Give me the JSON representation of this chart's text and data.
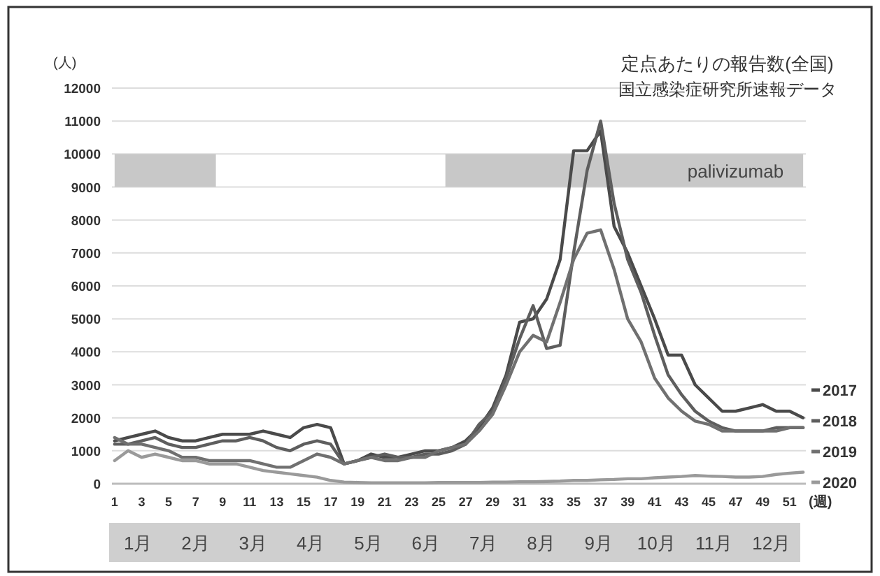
{
  "chart_data": {
    "type": "line",
    "title": "定点あたりの報告数(全国)",
    "subtitle": "国立感染症研究所速報データ",
    "ylabel": "(人)",
    "xlabel": "(週)",
    "x": [
      1,
      2,
      3,
      4,
      5,
      6,
      7,
      8,
      9,
      10,
      11,
      12,
      13,
      14,
      15,
      16,
      17,
      18,
      19,
      20,
      21,
      22,
      23,
      24,
      25,
      26,
      27,
      28,
      29,
      30,
      31,
      32,
      33,
      34,
      35,
      36,
      37,
      38,
      39,
      40,
      41,
      42,
      43,
      44,
      45,
      46,
      47,
      48,
      49,
      50,
      51,
      52
    ],
    "xlim": [
      0.8,
      52.2
    ],
    "xticks": [
      1,
      3,
      5,
      7,
      9,
      11,
      13,
      15,
      17,
      19,
      21,
      23,
      25,
      27,
      29,
      31,
      33,
      35,
      37,
      39,
      41,
      43,
      45,
      47,
      49,
      51
    ],
    "ylim": [
      0,
      12000
    ],
    "yticks": [
      0,
      1000,
      2000,
      3000,
      4000,
      5000,
      6000,
      7000,
      8000,
      9000,
      10000,
      11000,
      12000
    ],
    "grid": "y",
    "legend": "right",
    "line_style": "solid",
    "marker": "none",
    "series": [
      {
        "name": "2017",
        "color": "#4a4a4a",
        "values": [
          1300,
          1400,
          1500,
          1600,
          1400,
          1300,
          1300,
          1400,
          1500,
          1500,
          1500,
          1600,
          1500,
          1400,
          1700,
          1800,
          1700,
          600,
          700,
          900,
          800,
          800,
          900,
          1000,
          1000,
          1100,
          1300,
          1700,
          2300,
          3300,
          4900,
          5000,
          5600,
          6800,
          10100,
          10100,
          10700,
          7800,
          7000,
          6000,
          5000,
          3900,
          3900,
          3000,
          2600,
          2200,
          2200,
          2300,
          2400,
          2200,
          2200,
          2000
        ]
      },
      {
        "name": "2018",
        "color": "#5e5e5e",
        "values": [
          1200,
          1200,
          1300,
          1400,
          1200,
          1100,
          1100,
          1200,
          1300,
          1300,
          1400,
          1300,
          1100,
          1000,
          1200,
          1300,
          1200,
          600,
          700,
          800,
          900,
          800,
          800,
          900,
          900,
          1000,
          1200,
          1800,
          2200,
          3200,
          4400,
          5400,
          4100,
          4200,
          7000,
          9500,
          11000,
          8500,
          6800,
          5800,
          4500,
          3300,
          2700,
          2200,
          1900,
          1700,
          1600,
          1600,
          1600,
          1700,
          1700,
          1700
        ]
      },
      {
        "name": "2019",
        "color": "#707070",
        "values": [
          1400,
          1200,
          1200,
          1100,
          1000,
          800,
          800,
          700,
          700,
          700,
          700,
          600,
          500,
          500,
          700,
          900,
          800,
          600,
          700,
          800,
          700,
          700,
          800,
          800,
          1000,
          1100,
          1200,
          1600,
          2100,
          3000,
          4000,
          4500,
          4300,
          5500,
          6800,
          7600,
          7700,
          6500,
          5000,
          4300,
          3200,
          2600,
          2200,
          1900,
          1800,
          1600,
          1600,
          1600,
          1600,
          1600,
          1700,
          1700
        ]
      },
      {
        "name": "2020",
        "color": "#9a9a9a",
        "values": [
          700,
          1000,
          800,
          900,
          800,
          700,
          700,
          600,
          600,
          600,
          500,
          400,
          350,
          300,
          250,
          200,
          100,
          50,
          40,
          30,
          30,
          30,
          30,
          30,
          40,
          40,
          40,
          40,
          50,
          50,
          60,
          60,
          70,
          80,
          100,
          100,
          120,
          130,
          150,
          150,
          180,
          200,
          220,
          250,
          230,
          220,
          200,
          200,
          220,
          280,
          320,
          350
        ]
      }
    ],
    "bands": [
      {
        "axis": "x",
        "from": 1,
        "to": 8.5,
        "color": "#c8c8c8"
      },
      {
        "axis": "x",
        "from": 25.5,
        "to": 52,
        "label": "palivizumab",
        "color": "#c8c8c8"
      }
    ],
    "annotations": [
      "1月",
      "2月",
      "3月",
      "4月",
      "5月",
      "6月",
      "7月",
      "8月",
      "9月",
      "10月",
      "11月",
      "12月"
    ]
  }
}
